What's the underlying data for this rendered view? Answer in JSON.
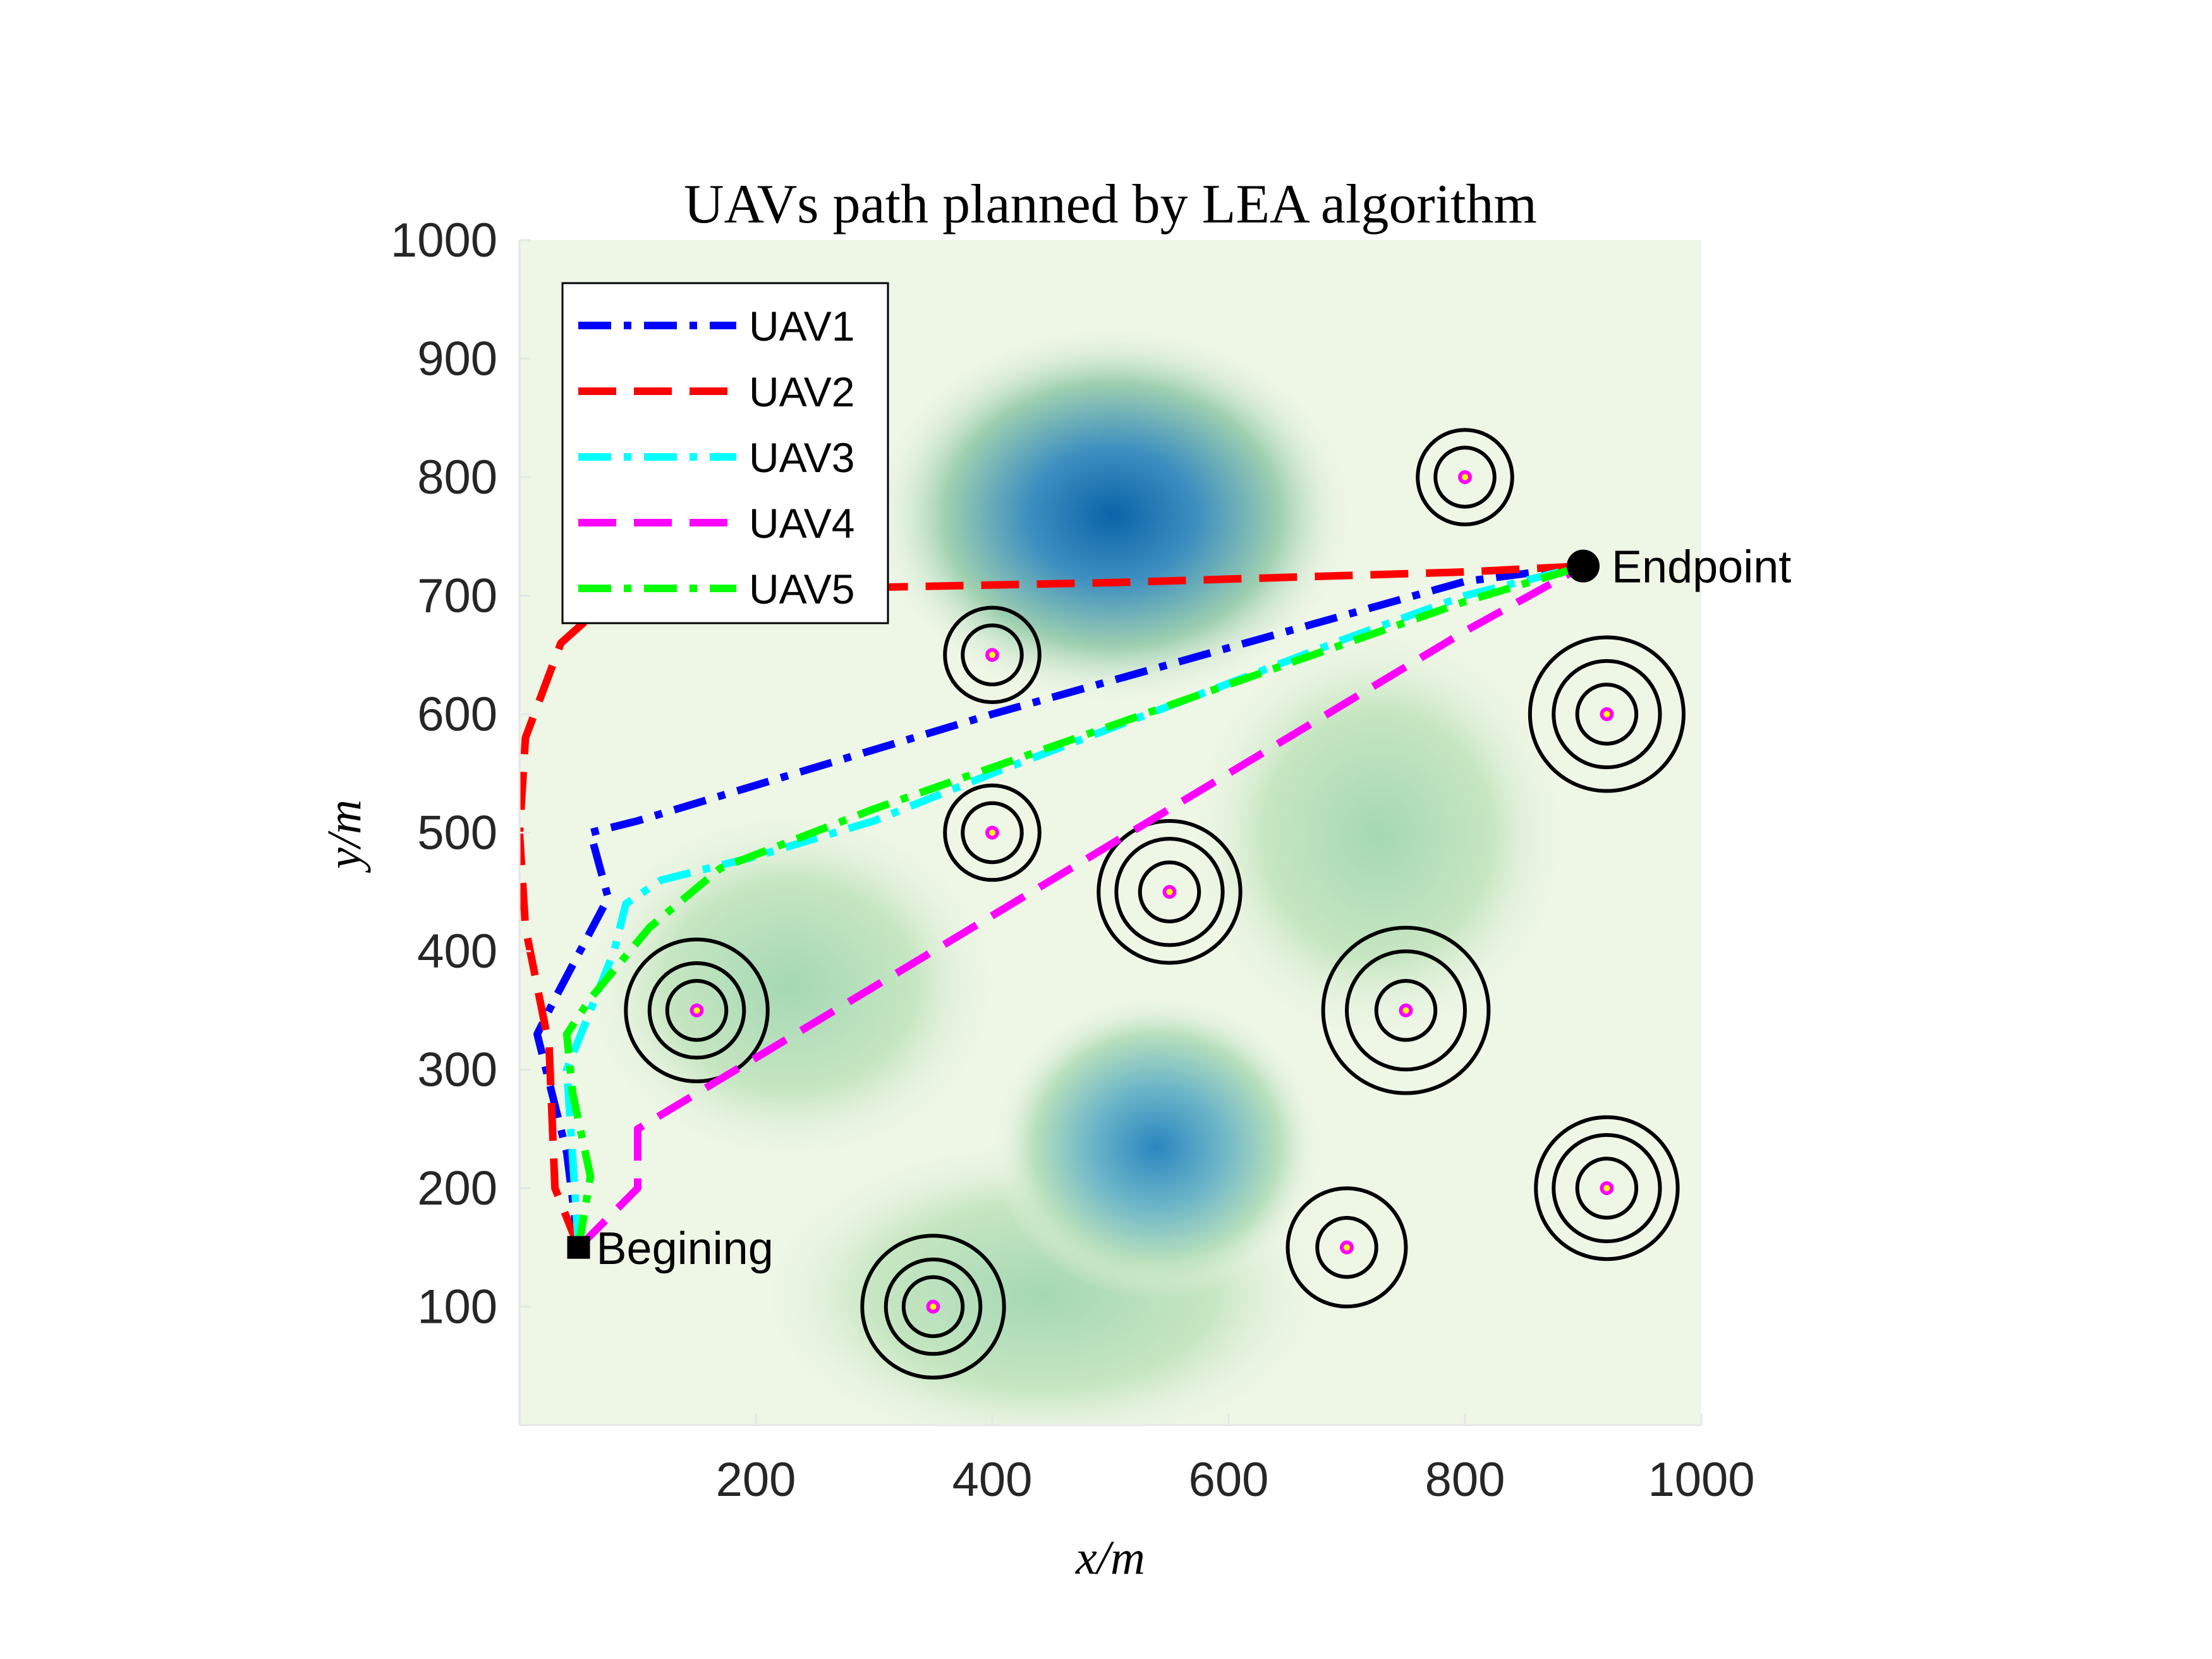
{
  "chart_data": {
    "type": "line",
    "title": "UAVs path planned by LEA algorithm",
    "xlabel": "x/m",
    "ylabel": "y/m",
    "xlim": [
      0,
      1000
    ],
    "ylim": [
      0,
      1000
    ],
    "x_ticks": [
      200,
      400,
      600,
      800,
      1000
    ],
    "y_ticks": [
      100,
      200,
      300,
      400,
      500,
      600,
      700,
      800,
      900,
      1000
    ],
    "grid": false,
    "legend_position": "top-left",
    "background": "green terrain field with blue peaks",
    "series": [
      {
        "name": "UAV1",
        "color": "#0000ff",
        "style": "dash-dot",
        "points": [
          [
            50,
            150
          ],
          [
            40,
            230
          ],
          [
            15,
            330
          ],
          [
            30,
            360
          ],
          [
            75,
            445
          ],
          [
            60,
            500
          ],
          [
            100,
            510
          ],
          [
            200,
            540
          ],
          [
            300,
            570
          ],
          [
            400,
            600
          ],
          [
            500,
            628
          ],
          [
            600,
            656
          ],
          [
            700,
            684
          ],
          [
            800,
            712
          ],
          [
            900,
            725
          ]
        ]
      },
      {
        "name": "UAV2",
        "color": "#ff0000",
        "style": "dashed",
        "points": [
          [
            50,
            150
          ],
          [
            30,
            200
          ],
          [
            25,
            320
          ],
          [
            5,
            420
          ],
          [
            0,
            500
          ],
          [
            5,
            580
          ],
          [
            35,
            660
          ],
          [
            80,
            700
          ],
          [
            200,
            705
          ],
          [
            300,
            707
          ],
          [
            400,
            709
          ],
          [
            500,
            711
          ],
          [
            600,
            714
          ],
          [
            700,
            717
          ],
          [
            800,
            720
          ],
          [
            900,
            725
          ]
        ]
      },
      {
        "name": "UAV3",
        "color": "#00ffff",
        "style": "dash-dot",
        "points": [
          [
            50,
            150
          ],
          [
            40,
            300
          ],
          [
            80,
            400
          ],
          [
            90,
            440
          ],
          [
            120,
            460
          ],
          [
            200,
            480
          ],
          [
            300,
            510
          ],
          [
            400,
            550
          ],
          [
            500,
            588
          ],
          [
            600,
            626
          ],
          [
            700,
            664
          ],
          [
            800,
            700
          ],
          [
            900,
            725
          ]
        ]
      },
      {
        "name": "UAV4",
        "color": "#ff00ff",
        "style": "dashed",
        "points": [
          [
            50,
            150
          ],
          [
            100,
            200
          ],
          [
            100,
            250
          ],
          [
            200,
            310
          ],
          [
            300,
            370
          ],
          [
            400,
            430
          ],
          [
            500,
            490
          ],
          [
            600,
            550
          ],
          [
            700,
            610
          ],
          [
            800,
            670
          ],
          [
            900,
            725
          ]
        ]
      },
      {
        "name": "UAV5",
        "color": "#00ff00",
        "style": "dash-dot",
        "points": [
          [
            50,
            150
          ],
          [
            60,
            210
          ],
          [
            45,
            280
          ],
          [
            40,
            330
          ],
          [
            60,
            360
          ],
          [
            110,
            420
          ],
          [
            170,
            470
          ],
          [
            300,
            520
          ],
          [
            400,
            555
          ],
          [
            500,
            590
          ],
          [
            600,
            625
          ],
          [
            700,
            660
          ],
          [
            800,
            695
          ],
          [
            900,
            725
          ]
        ]
      }
    ],
    "threats": [
      {
        "x": 800,
        "y": 800,
        "rings": [
          25,
          40
        ]
      },
      {
        "x": 400,
        "y": 650,
        "rings": [
          25,
          40
        ]
      },
      {
        "x": 920,
        "y": 600,
        "rings": [
          25,
          45,
          65
        ]
      },
      {
        "x": 400,
        "y": 500,
        "rings": [
          25,
          40
        ]
      },
      {
        "x": 550,
        "y": 450,
        "rings": [
          25,
          45,
          60
        ]
      },
      {
        "x": 150,
        "y": 350,
        "rings": [
          25,
          40,
          60
        ]
      },
      {
        "x": 750,
        "y": 350,
        "rings": [
          25,
          50,
          70
        ]
      },
      {
        "x": 920,
        "y": 200,
        "rings": [
          25,
          45,
          60
        ]
      },
      {
        "x": 700,
        "y": 150,
        "rings": [
          25,
          50
        ]
      },
      {
        "x": 350,
        "y": 100,
        "rings": [
          25,
          40,
          60
        ]
      }
    ],
    "start": {
      "x": 50,
      "y": 150,
      "label": "Begining"
    },
    "end": {
      "x": 900,
      "y": 725,
      "label": "Endpoint"
    }
  }
}
